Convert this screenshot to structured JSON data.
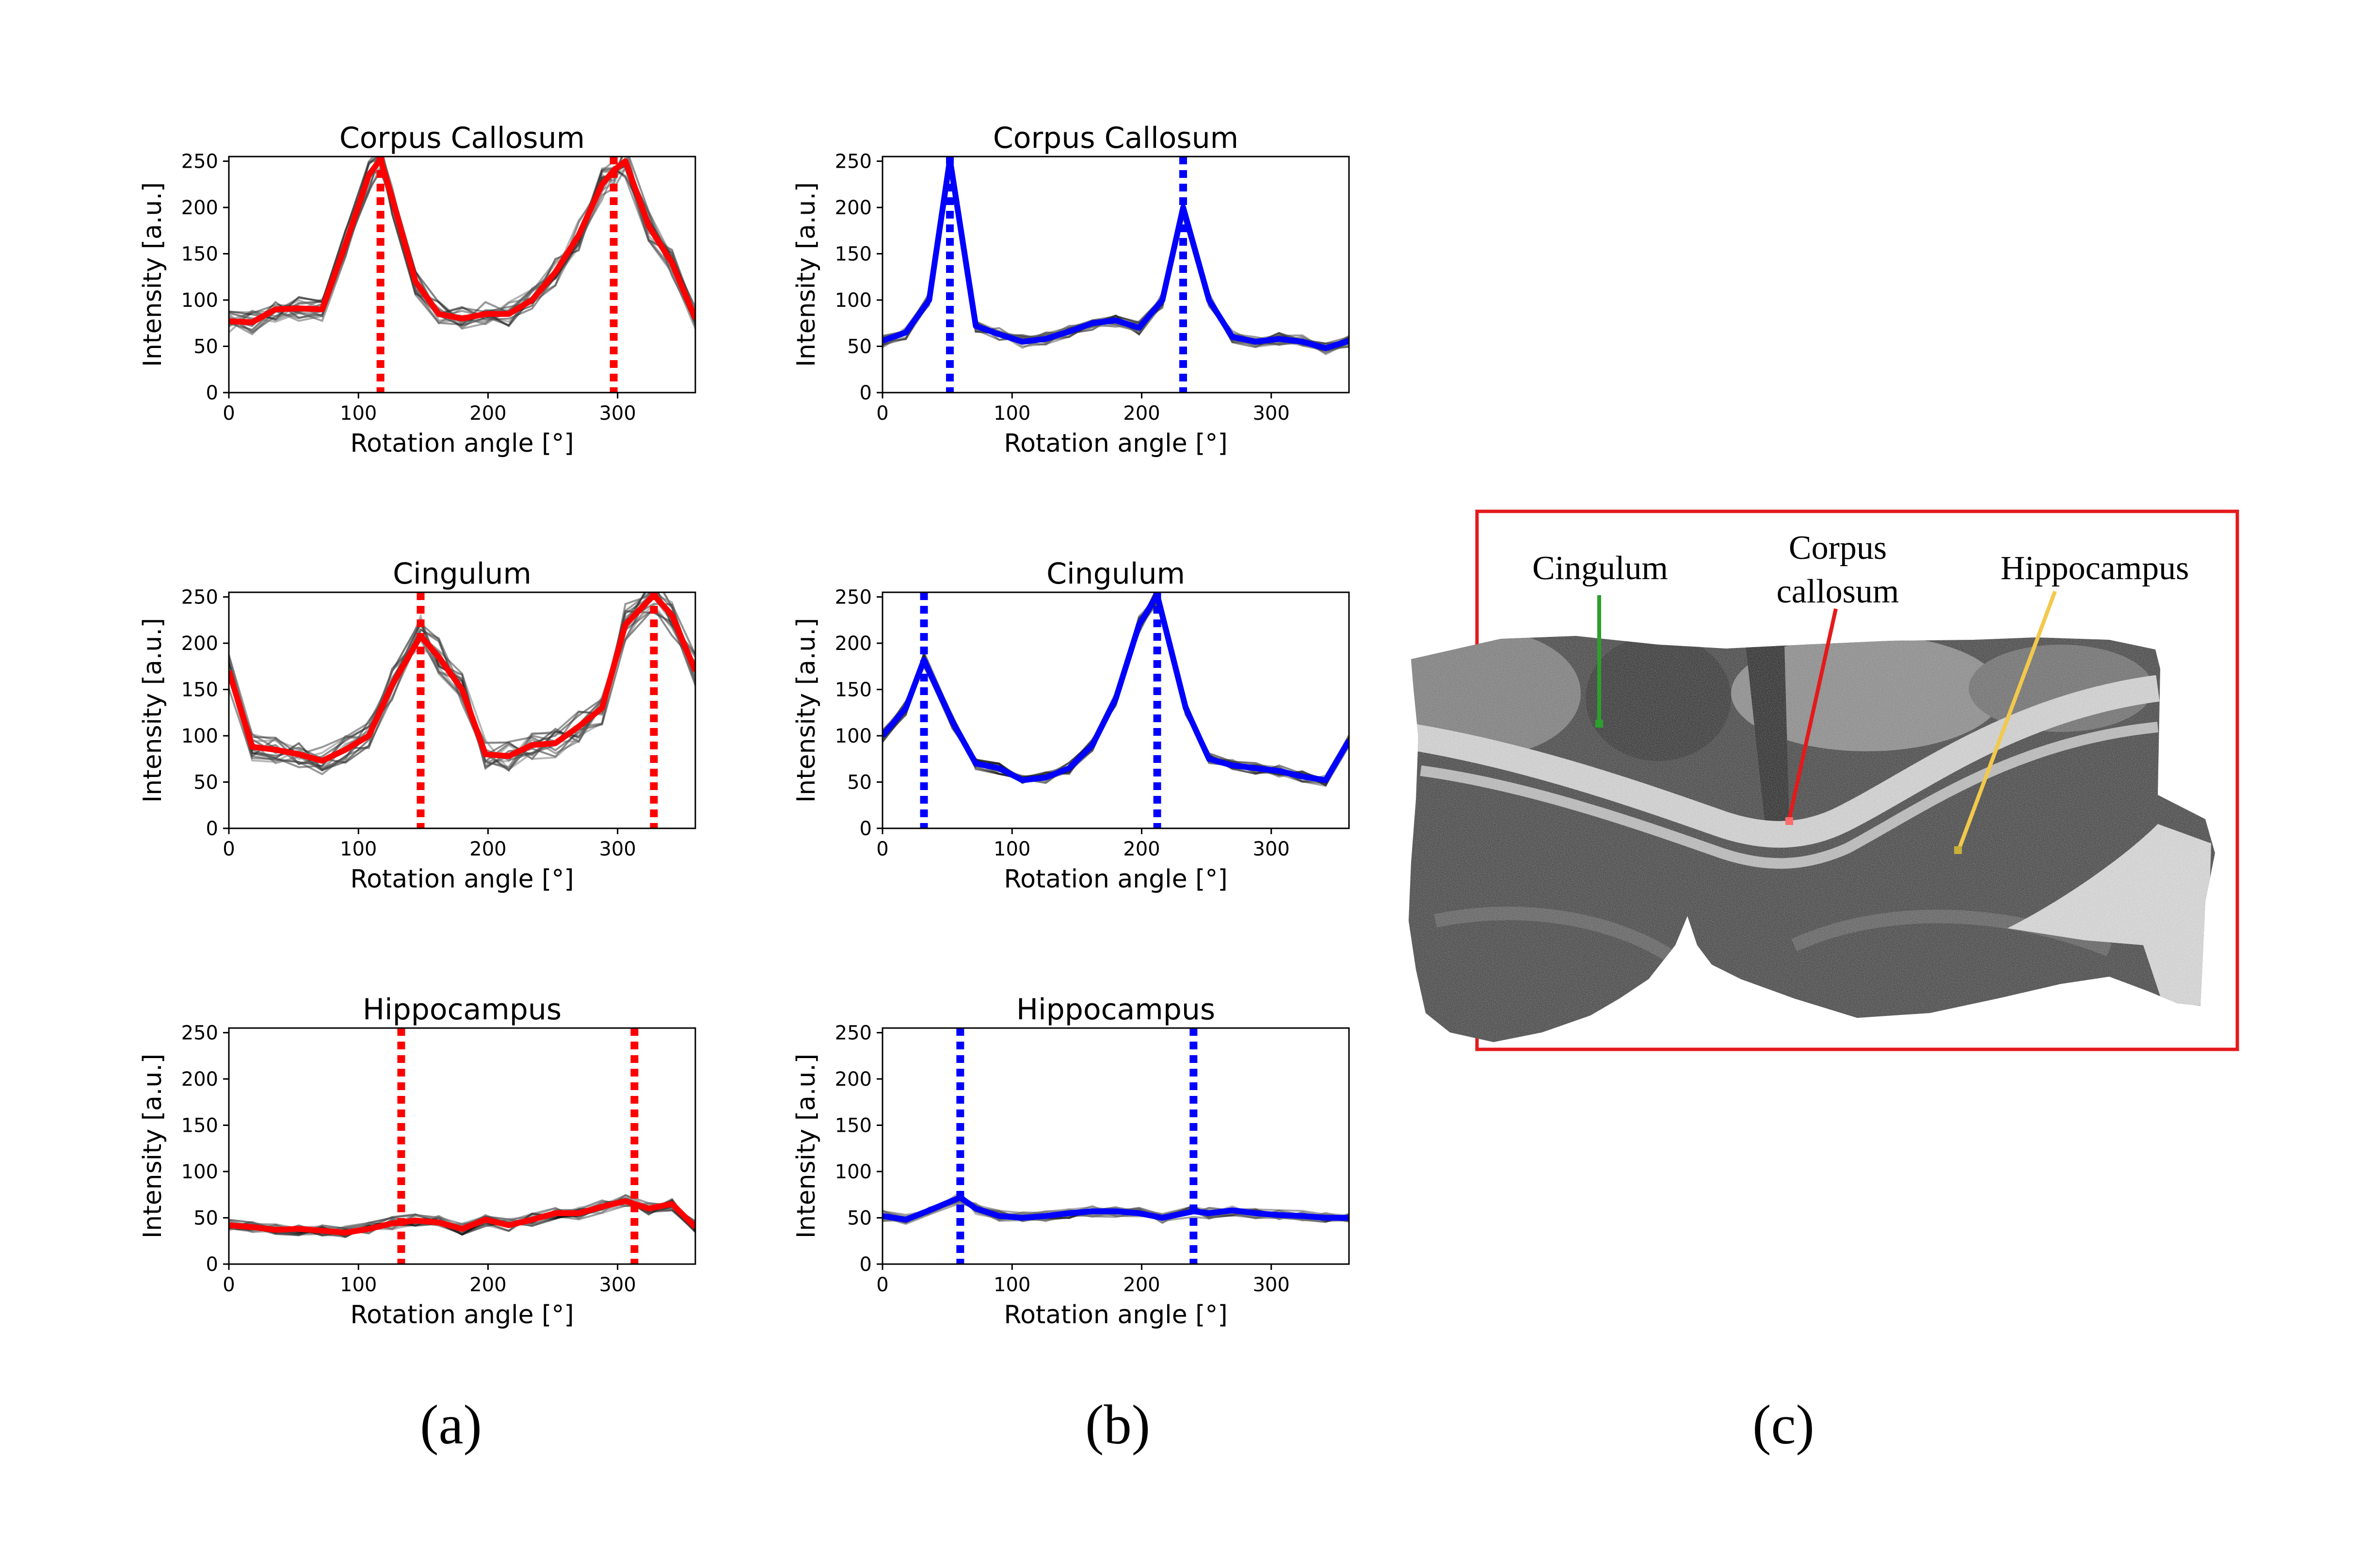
{
  "captions": [
    "(a)",
    "(b)",
    "(c)"
  ],
  "image_panel": {
    "labels": {
      "cingulum": "Cingulum",
      "corpus_line1": "Corpus",
      "corpus_line2": "callosum",
      "hippocampus": "Hippocampus"
    },
    "colors": {
      "frame": "#e31a1c",
      "cingulum": "#2ca02c",
      "corpus": "#e31a1c",
      "hippocampus": "#f2c94c"
    }
  },
  "chart_data": [
    {
      "type": "line",
      "title": "Corpus Callosum",
      "xlabel": "Rotation angle [°]",
      "ylabel": "Intensity [a.u.]",
      "xlim": [
        0,
        360
      ],
      "ylim": [
        0,
        255
      ],
      "xticks": [
        0,
        100,
        200,
        300
      ],
      "yticks": [
        0,
        50,
        100,
        150,
        200,
        250
      ],
      "color": "#ff0000",
      "peaks": [
        117,
        297
      ],
      "x": [
        0,
        18,
        36,
        54,
        72,
        90,
        108,
        117,
        126,
        144,
        162,
        180,
        198,
        216,
        234,
        252,
        270,
        288,
        297,
        306,
        324,
        342,
        360
      ],
      "y": [
        77,
        76,
        90,
        91,
        90,
        160,
        235,
        252,
        210,
        120,
        85,
        80,
        85,
        85,
        100,
        130,
        170,
        225,
        240,
        250,
        180,
        140,
        80
      ],
      "noise": 10
    },
    {
      "type": "line",
      "title": "Corpus Callosum",
      "xlabel": "Rotation angle [°]",
      "ylabel": "Intensity [a.u.]",
      "xlim": [
        0,
        360
      ],
      "ylim": [
        0,
        255
      ],
      "xticks": [
        0,
        100,
        200,
        300
      ],
      "yticks": [
        0,
        50,
        100,
        150,
        200,
        250
      ],
      "color": "#0000ff",
      "peaks": [
        52,
        232
      ],
      "x": [
        0,
        18,
        36,
        52,
        72,
        90,
        108,
        126,
        144,
        162,
        180,
        198,
        216,
        232,
        252,
        270,
        288,
        306,
        324,
        342,
        360
      ],
      "y": [
        56,
        65,
        100,
        252,
        72,
        63,
        55,
        58,
        66,
        75,
        78,
        70,
        100,
        200,
        100,
        60,
        55,
        58,
        55,
        48,
        56
      ],
      "noise": 6
    },
    {
      "type": "line",
      "title": "Cingulum",
      "xlabel": "Rotation angle [°]",
      "ylabel": "Intensity [a.u.]",
      "xlim": [
        0,
        360
      ],
      "ylim": [
        0,
        255
      ],
      "xticks": [
        0,
        100,
        200,
        300
      ],
      "yticks": [
        0,
        50,
        100,
        150,
        200,
        250
      ],
      "color": "#ff0000",
      "peaks": [
        148,
        328
      ],
      "x": [
        0,
        18,
        36,
        54,
        72,
        90,
        108,
        126,
        148,
        162,
        180,
        198,
        216,
        234,
        252,
        270,
        288,
        306,
        328,
        342,
        360
      ],
      "y": [
        170,
        88,
        85,
        80,
        73,
        85,
        100,
        155,
        208,
        185,
        150,
        80,
        78,
        90,
        92,
        110,
        130,
        220,
        252,
        230,
        170
      ],
      "noise": 12
    },
    {
      "type": "line",
      "title": "Cingulum",
      "xlabel": "Rotation angle [°]",
      "ylabel": "Intensity [a.u.]",
      "xlim": [
        0,
        360
      ],
      "ylim": [
        0,
        255
      ],
      "xticks": [
        0,
        100,
        200,
        300
      ],
      "yticks": [
        0,
        50,
        100,
        150,
        200,
        250
      ],
      "color": "#0000ff",
      "peaks": [
        32,
        212
      ],
      "x": [
        0,
        18,
        32,
        54,
        72,
        90,
        108,
        126,
        144,
        162,
        180,
        198,
        212,
        234,
        252,
        270,
        288,
        306,
        324,
        342,
        360
      ],
      "y": [
        100,
        130,
        182,
        115,
        70,
        65,
        52,
        55,
        65,
        90,
        140,
        220,
        252,
        130,
        75,
        68,
        65,
        62,
        56,
        52,
        95
      ],
      "noise": 5
    },
    {
      "type": "line",
      "title": "Hippocampus",
      "xlabel": "Rotation angle [°]",
      "ylabel": "Intensity [a.u.]",
      "xlim": [
        0,
        360
      ],
      "ylim": [
        0,
        255
      ],
      "xticks": [
        0,
        100,
        200,
        300
      ],
      "yticks": [
        0,
        50,
        100,
        150,
        200,
        250
      ],
      "color": "#ff0000",
      "peaks": [
        133,
        313
      ],
      "x": [
        0,
        18,
        36,
        54,
        72,
        90,
        108,
        126,
        144,
        162,
        180,
        198,
        216,
        234,
        252,
        270,
        288,
        306,
        324,
        342,
        360
      ],
      "y": [
        42,
        40,
        37,
        38,
        36,
        34,
        38,
        44,
        47,
        45,
        38,
        48,
        42,
        48,
        55,
        55,
        62,
        68,
        60,
        65,
        40
      ],
      "noise": 6
    },
    {
      "type": "line",
      "title": "Hippocampus",
      "xlabel": "Rotation angle [°]",
      "ylabel": "Intensity [a.u.]",
      "xlim": [
        0,
        360
      ],
      "ylim": [
        0,
        255
      ],
      "xticks": [
        0,
        100,
        200,
        300
      ],
      "yticks": [
        0,
        50,
        100,
        150,
        200,
        250
      ],
      "color": "#0000ff",
      "peaks": [
        60,
        240
      ],
      "x": [
        0,
        18,
        36,
        60,
        72,
        90,
        108,
        126,
        144,
        162,
        180,
        198,
        216,
        240,
        252,
        270,
        288,
        306,
        324,
        342,
        360
      ],
      "y": [
        52,
        48,
        58,
        72,
        60,
        52,
        50,
        52,
        55,
        57,
        57,
        55,
        50,
        57,
        55,
        58,
        55,
        53,
        52,
        50,
        50
      ],
      "noise": 5
    }
  ]
}
